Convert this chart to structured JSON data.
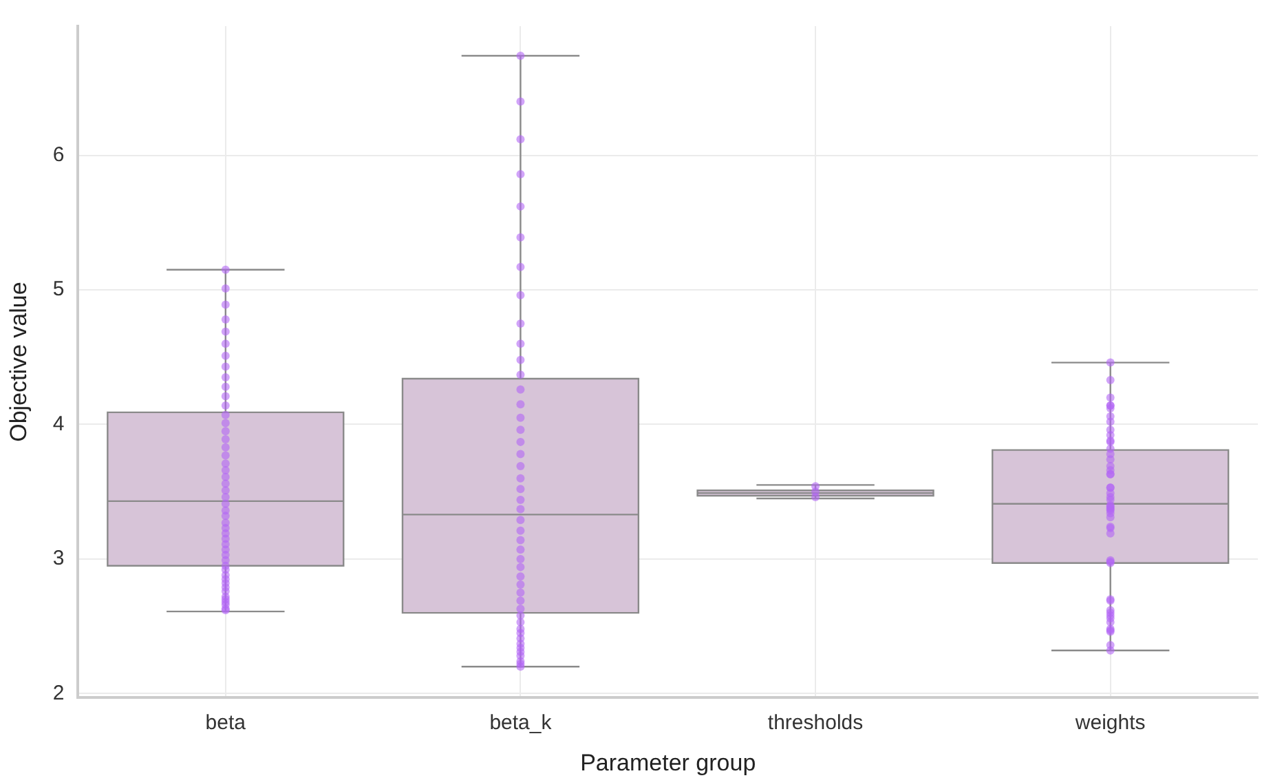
{
  "chart_data": {
    "type": "box",
    "xlabel": "Parameter group",
    "ylabel": "Objective value",
    "categories": [
      "beta",
      "beta_k",
      "thresholds",
      "weights"
    ],
    "ylim": [
      1.97,
      6.96
    ],
    "yticks": [
      2,
      3,
      4,
      5,
      6
    ],
    "grid": true,
    "series": [
      {
        "color": "#d7c4d8",
        "boxes": [
          {
            "low": 2.61,
            "q1": 2.95,
            "median": 3.43,
            "q3": 4.09,
            "high": 5.15
          },
          {
            "low": 2.2,
            "q1": 2.6,
            "median": 3.33,
            "q3": 4.34,
            "high": 6.74
          },
          {
            "low": 3.45,
            "q1": 3.47,
            "median": 3.49,
            "q3": 3.51,
            "high": 3.55
          },
          {
            "low": 2.32,
            "q1": 2.97,
            "median": 3.41,
            "q3": 3.81,
            "high": 4.46
          }
        ]
      },
      {
        "type": "scatter",
        "color": "#b266f5",
        "marker": "circle",
        "x": [
          "beta",
          "beta",
          "beta",
          "beta",
          "beta",
          "beta",
          "beta",
          "beta",
          "beta",
          "beta",
          "beta",
          "beta",
          "beta",
          "beta",
          "beta",
          "beta",
          "beta",
          "beta",
          "beta",
          "beta",
          "beta",
          "beta",
          "beta",
          "beta",
          "beta",
          "beta",
          "beta",
          "beta",
          "beta",
          "beta",
          "beta",
          "beta",
          "beta",
          "beta",
          "beta",
          "beta",
          "beta",
          "beta",
          "beta",
          "beta",
          "beta",
          "beta",
          "beta",
          "beta",
          "beta",
          "beta",
          "beta",
          "beta",
          "beta_k",
          "beta_k",
          "beta_k",
          "beta_k",
          "beta_k",
          "beta_k",
          "beta_k",
          "beta_k",
          "beta_k",
          "beta_k",
          "beta_k",
          "beta_k",
          "beta_k",
          "beta_k",
          "beta_k",
          "beta_k",
          "beta_k",
          "beta_k",
          "beta_k",
          "beta_k",
          "beta_k",
          "beta_k",
          "beta_k",
          "beta_k",
          "beta_k",
          "beta_k",
          "beta_k",
          "beta_k",
          "beta_k",
          "beta_k",
          "beta_k",
          "beta_k",
          "beta_k",
          "beta_k",
          "beta_k",
          "beta_k",
          "beta_k",
          "beta_k",
          "beta_k",
          "beta_k",
          "beta_k",
          "beta_k",
          "beta_k",
          "beta_k",
          "beta_k",
          "beta_k",
          "thresholds",
          "thresholds",
          "thresholds",
          "weights",
          "weights",
          "weights",
          "weights",
          "weights",
          "weights",
          "weights",
          "weights",
          "weights",
          "weights",
          "weights",
          "weights",
          "weights",
          "weights",
          "weights",
          "weights",
          "weights",
          "weights",
          "weights",
          "weights",
          "weights",
          "weights",
          "weights",
          "weights",
          "weights",
          "weights",
          "weights",
          "weights",
          "weights",
          "weights",
          "weights",
          "weights",
          "weights",
          "weights",
          "weights",
          "weights",
          "weights",
          "weights",
          "weights",
          "weights",
          "weights",
          "weights",
          "weights",
          "weights",
          "weights",
          "weights",
          "weights",
          "weights",
          "weights"
        ],
        "values": [
          5.15,
          5.01,
          4.89,
          4.78,
          4.69,
          4.6,
          4.51,
          4.43,
          4.35,
          4.28,
          4.21,
          4.14,
          4.07,
          4.01,
          3.95,
          3.89,
          3.83,
          3.77,
          3.71,
          3.66,
          3.61,
          3.56,
          3.51,
          3.46,
          3.41,
          3.36,
          3.32,
          3.27,
          3.23,
          3.19,
          3.15,
          3.11,
          3.07,
          3.03,
          2.99,
          2.95,
          2.92,
          2.88,
          2.85,
          2.82,
          2.79,
          2.76,
          2.72,
          2.7,
          2.68,
          2.66,
          2.63,
          2.62,
          6.74,
          6.4,
          6.12,
          5.86,
          5.62,
          5.39,
          5.17,
          4.96,
          4.75,
          4.6,
          4.48,
          4.37,
          4.26,
          4.15,
          4.05,
          3.96,
          3.87,
          3.78,
          3.69,
          3.6,
          3.52,
          3.44,
          3.37,
          3.29,
          3.21,
          3.14,
          3.07,
          3.0,
          2.94,
          2.87,
          2.81,
          2.75,
          2.69,
          2.63,
          2.58,
          2.53,
          2.48,
          2.45,
          2.41,
          2.37,
          2.34,
          2.31,
          2.28,
          2.24,
          2.22,
          2.2,
          3.46,
          3.5,
          3.54,
          4.46,
          4.33,
          4.2,
          4.14,
          4.14,
          4.12,
          4.06,
          4.02,
          3.96,
          3.92,
          3.88,
          3.87,
          3.82,
          3.78,
          3.74,
          3.69,
          3.66,
          3.63,
          3.63,
          3.53,
          3.53,
          3.49,
          3.46,
          3.44,
          3.4,
          3.39,
          3.38,
          3.37,
          3.36,
          3.34,
          3.31,
          3.24,
          3.23,
          3.19,
          2.99,
          2.98,
          2.97,
          2.7,
          2.69,
          2.62,
          2.6,
          2.58,
          2.56,
          2.53,
          2.48,
          2.47,
          2.46,
          2.36,
          2.32
        ]
      }
    ]
  }
}
